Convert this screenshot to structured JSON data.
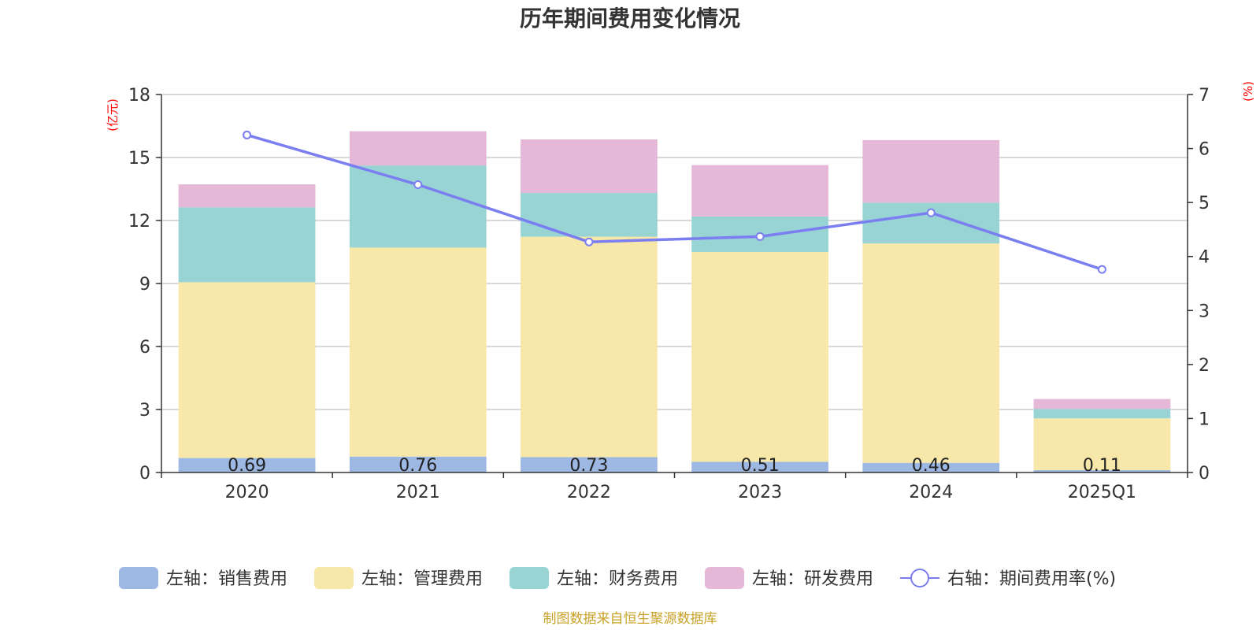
{
  "chart_data": {
    "type": "bar",
    "title": "历年期间费用变化情况",
    "left_axis_label": "(亿元)",
    "right_axis_label": "(%)",
    "categories": [
      "2020",
      "2021",
      "2022",
      "2023",
      "2024",
      "2025Q1"
    ],
    "left_ylim": [
      0,
      18
    ],
    "left_ticks": [
      "0",
      "3",
      "6",
      "9",
      "12",
      "15",
      "18"
    ],
    "right_ylim": [
      0,
      7
    ],
    "right_ticks": [
      "0",
      "1",
      "2",
      "3",
      "4",
      "5",
      "6",
      "7"
    ],
    "grid": true,
    "legend_position": "bottom",
    "series": [
      {
        "name": "左轴：销售费用",
        "type": "bar",
        "axis": "left",
        "color": "#9db8e3",
        "values": [
          0.69,
          0.76,
          0.73,
          0.51,
          0.46,
          0.11
        ],
        "labels": [
          "0.69",
          "0.76",
          "0.73",
          "0.51",
          "0.46",
          "0.11"
        ]
      },
      {
        "name": "左轴：管理费用",
        "type": "bar",
        "axis": "left",
        "color": "#f7e7a8",
        "values": [
          8.37,
          9.95,
          10.5,
          9.99,
          10.45,
          2.47
        ]
      },
      {
        "name": "左轴：财务费用",
        "type": "bar",
        "axis": "left",
        "color": "#98d4d4",
        "values": [
          3.57,
          3.91,
          2.08,
          1.69,
          1.94,
          0.45
        ]
      },
      {
        "name": "左轴：研发费用",
        "type": "bar",
        "axis": "left",
        "color": "#e6b8d8",
        "values": [
          1.09,
          1.63,
          2.55,
          2.45,
          2.98,
          0.47
        ]
      },
      {
        "name": "右轴：期间费用率(%)",
        "type": "line",
        "axis": "right",
        "color": "#7b7ef0",
        "values": [
          6.25,
          5.33,
          4.27,
          4.37,
          4.81,
          3.76
        ]
      }
    ]
  },
  "source": "制图数据来自恒生聚源数据库"
}
